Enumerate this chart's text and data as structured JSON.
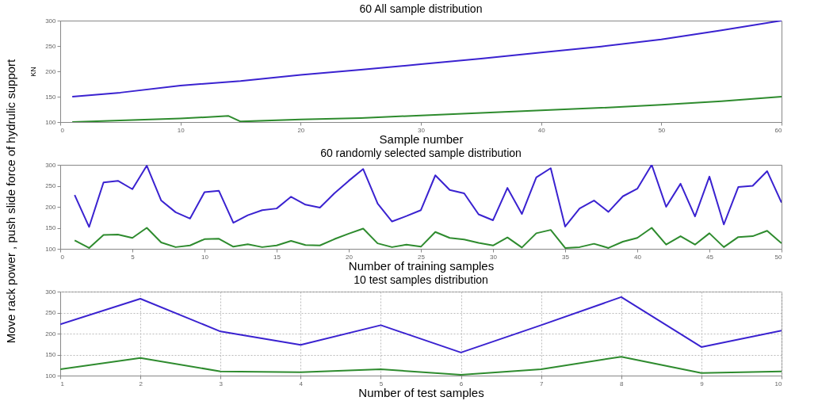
{
  "chart_data": [
    {
      "type": "line",
      "title": "60 All sample distribution",
      "xlabel": "Sample number",
      "ylabel": "KN",
      "xlim": [
        0,
        60
      ],
      "xticks": [
        0,
        10,
        20,
        30,
        40,
        50,
        60
      ],
      "ylim": [
        100,
        300
      ],
      "yticks": [
        100,
        150,
        200,
        250,
        300
      ],
      "grid": false,
      "marker": "none",
      "line_style": "solid",
      "series": [
        {
          "color": "#3a22d0",
          "x": [
            1,
            5,
            10,
            15,
            20,
            25,
            30,
            35,
            40,
            45,
            50,
            55,
            60
          ],
          "values": [
            150,
            158,
            172,
            181,
            193,
            203,
            214,
            225,
            237,
            249,
            263,
            281,
            300
          ]
        },
        {
          "color": "#2e8b2e",
          "x": [
            1,
            5,
            10,
            14,
            15,
            20,
            25,
            30,
            35,
            40,
            45,
            50,
            55,
            60
          ],
          "values": [
            100,
            103,
            107,
            112,
            101,
            105,
            108,
            113,
            118,
            123,
            128,
            134,
            141,
            150
          ]
        }
      ]
    },
    {
      "type": "line",
      "title": "60 randomly selected sample distribution",
      "xlabel": "Number of training samples",
      "ylabel": "Move rack power , push slide force of hydrulic support",
      "xlim": [
        0,
        50
      ],
      "xticks": [
        0,
        5,
        10,
        15,
        20,
        25,
        30,
        35,
        40,
        45,
        50
      ],
      "ylim": [
        100,
        300
      ],
      "yticks": [
        100,
        150,
        200,
        250,
        300
      ],
      "grid": false,
      "marker": "none",
      "line_style": "solid",
      "x": [
        1,
        2,
        3,
        4,
        5,
        6,
        7,
        8,
        9,
        10,
        11,
        12,
        13,
        14,
        15,
        16,
        17,
        18,
        19,
        20,
        21,
        22,
        23,
        24,
        25,
        26,
        27,
        28,
        29,
        30,
        31,
        32,
        33,
        34,
        35,
        36,
        37,
        38,
        39,
        40,
        41,
        42,
        43,
        44,
        45,
        46,
        47,
        48,
        49,
        50
      ],
      "series": [
        {
          "color": "#3a22d0",
          "values": [
            228,
            152,
            258,
            262,
            242,
            298,
            215,
            187,
            172,
            235,
            238,
            162,
            180,
            192,
            196,
            224,
            205,
            198,
            232,
            262,
            290,
            208,
            165,
            178,
            192,
            275,
            240,
            232,
            182,
            168,
            245,
            183,
            270,
            292,
            153,
            196,
            215,
            188,
            225,
            243,
            300,
            200,
            255,
            177,
            272,
            158,
            247,
            250,
            285,
            210
          ]
        },
        {
          "color": "#2e8b2e",
          "values": [
            120,
            102,
            133,
            134,
            126,
            150,
            115,
            104,
            108,
            123,
            124,
            105,
            111,
            104,
            108,
            119,
            109,
            108,
            123,
            136,
            148,
            113,
            104,
            110,
            105,
            140,
            126,
            122,
            114,
            108,
            127,
            103,
            137,
            145,
            102,
            104,
            112,
            102,
            117,
            126,
            150,
            110,
            130,
            110,
            137,
            104,
            128,
            130,
            143,
            113
          ]
        }
      ]
    },
    {
      "type": "line",
      "title": "10 test samples distribution",
      "xlabel": "Number of test samples",
      "xlim": [
        1,
        10
      ],
      "xticks": [
        1,
        2,
        3,
        4,
        5,
        6,
        7,
        8,
        9,
        10
      ],
      "ylim": [
        100,
        300
      ],
      "yticks": [
        100,
        150,
        200,
        250,
        300
      ],
      "grid": true,
      "marker": "none",
      "line_style": "solid",
      "x": [
        1,
        2,
        3,
        4,
        5,
        6,
        7,
        8,
        9,
        10
      ],
      "series": [
        {
          "color": "#3a22d0",
          "values": [
            222,
            283,
            205,
            173,
            220,
            155,
            220,
            287,
            168,
            207
          ]
        },
        {
          "color": "#2e8b2e",
          "values": [
            115,
            142,
            110,
            108,
            115,
            102,
            115,
            145,
            106,
            110
          ]
        }
      ]
    }
  ]
}
